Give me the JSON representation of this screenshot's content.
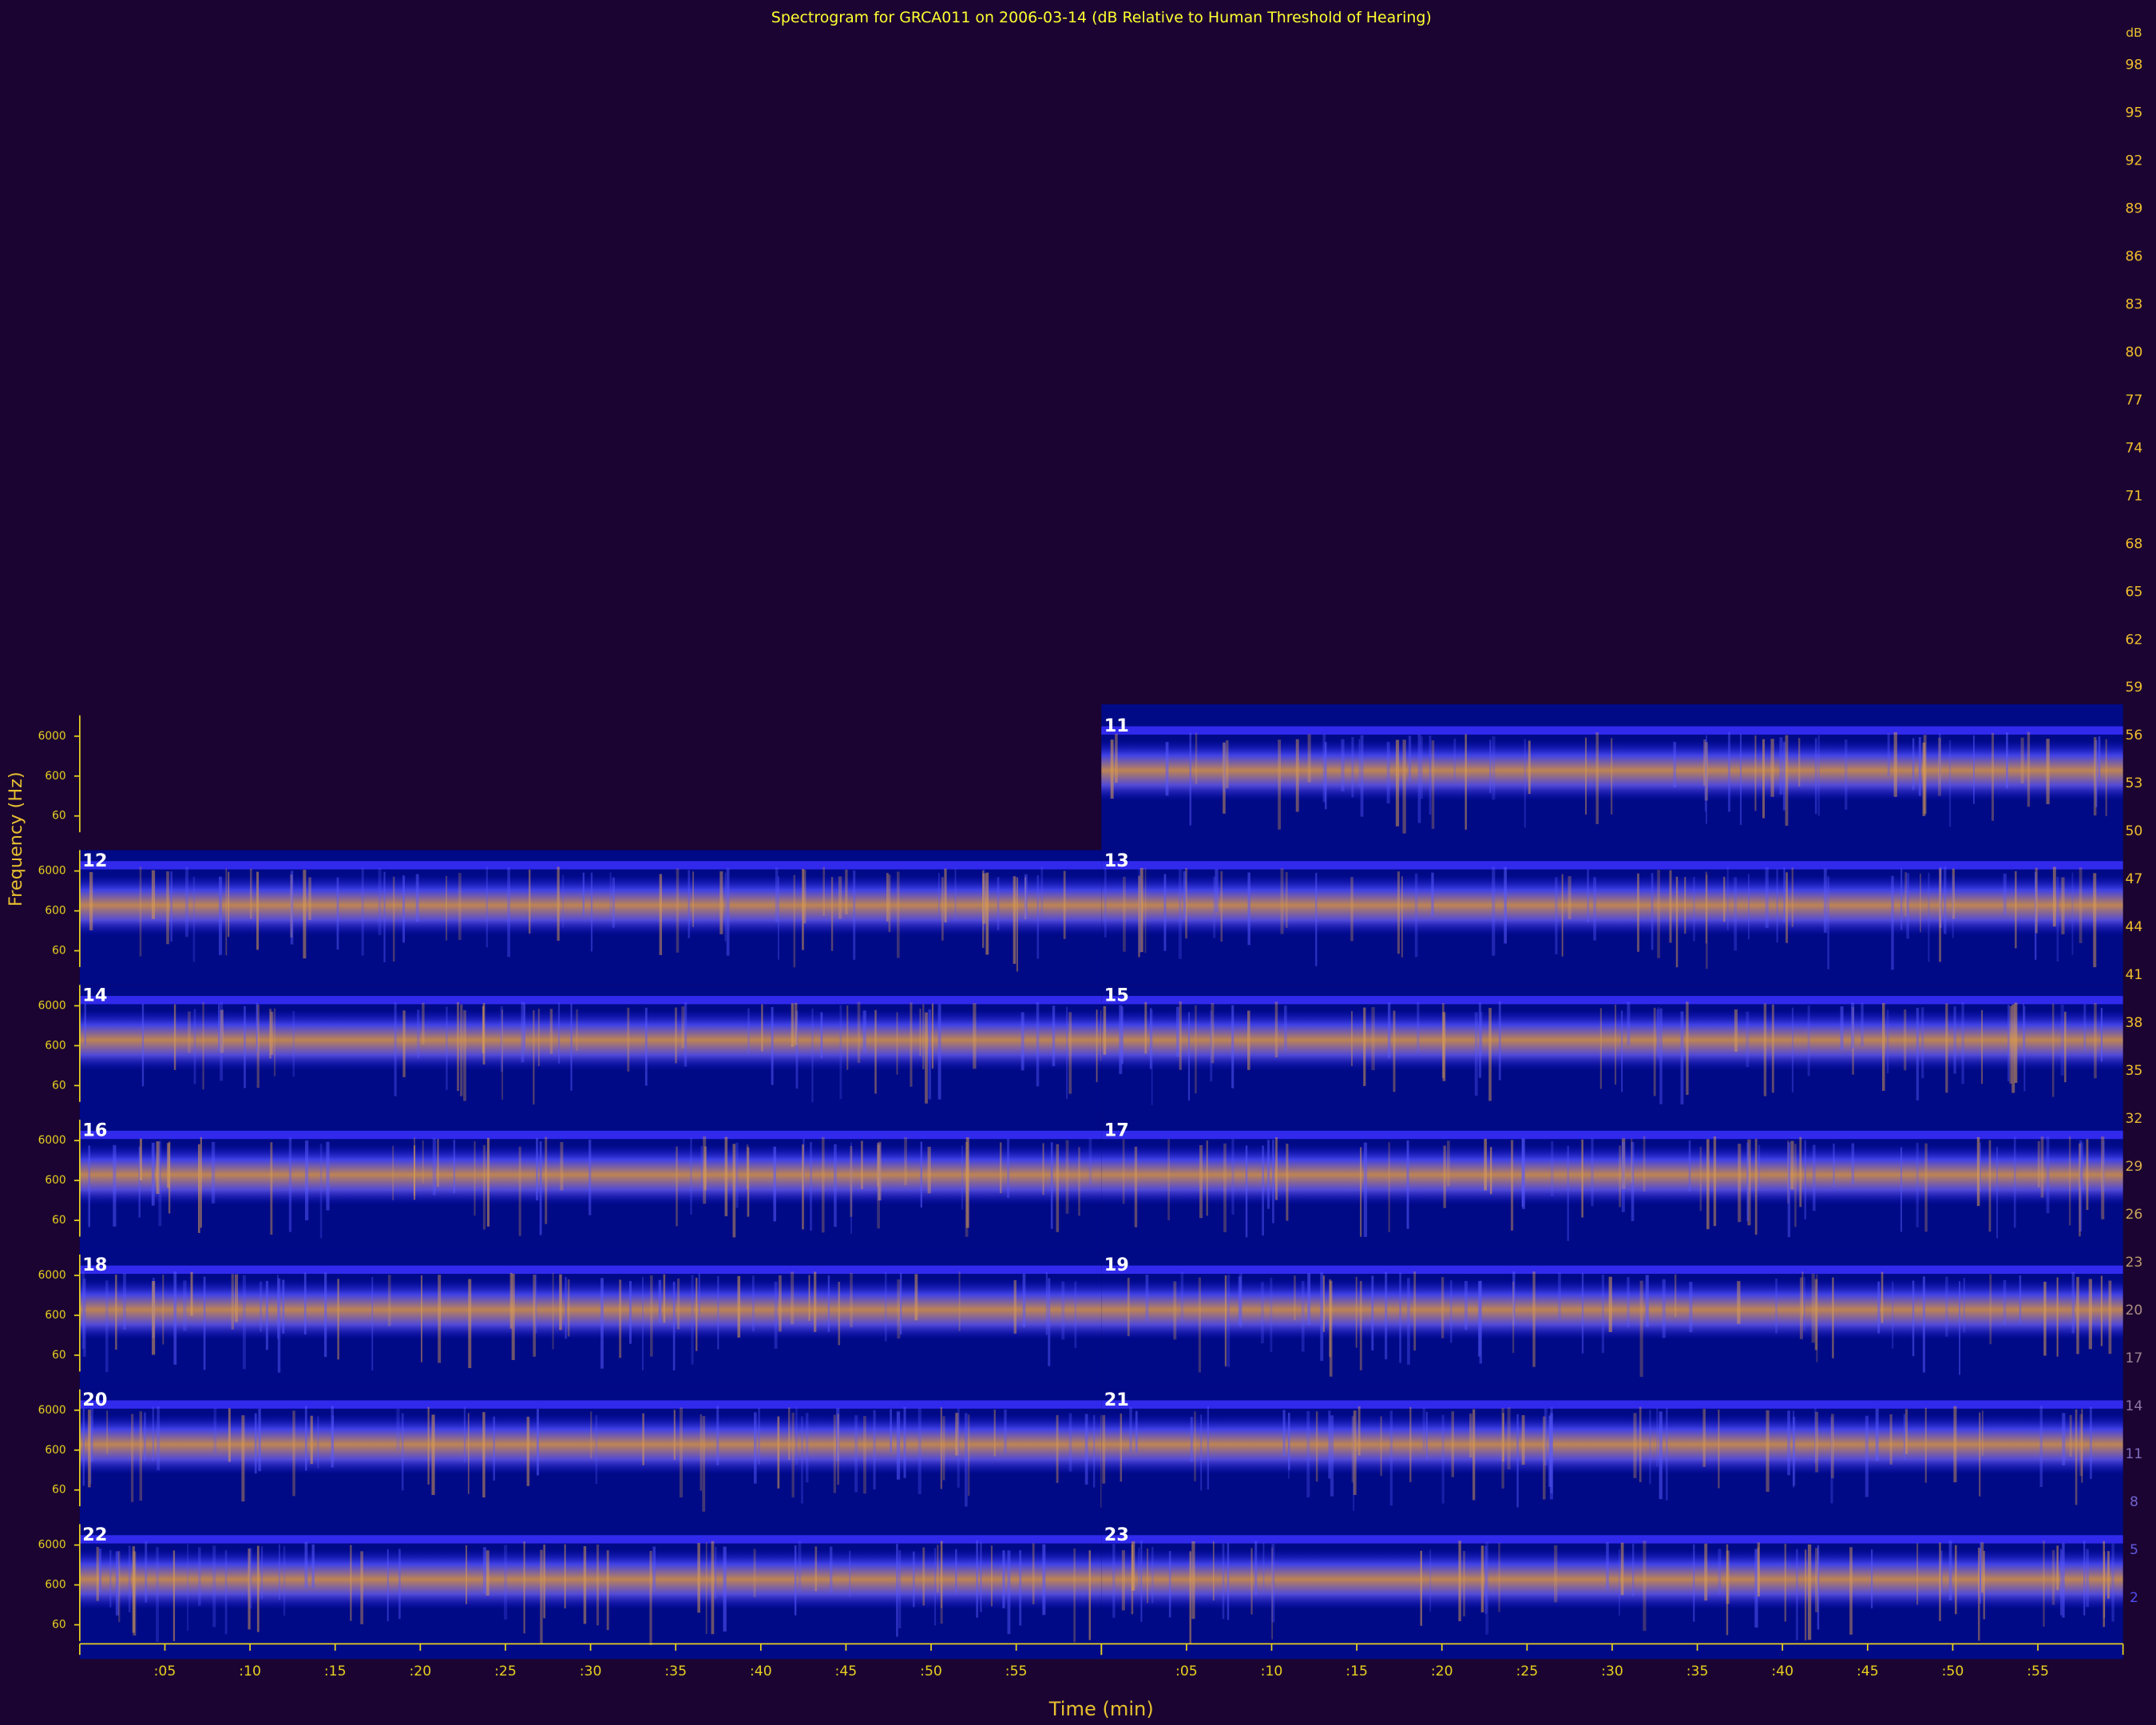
{
  "chart_data": {
    "type": "spectrogram",
    "title": "Spectrogram for GRCA011 on 2006-03-14 (dB Relative to Human Threshold of Hearing)",
    "x_label": "Time (min)",
    "y_label": "Frequency (Hz)",
    "xlim": [
      0,
      60
    ],
    "xticks": [
      {
        "value": 5,
        "label": ":05"
      },
      {
        "value": 10,
        "label": ":10"
      },
      {
        "value": 15,
        "label": ":15"
      },
      {
        "value": 20,
        "label": ":20"
      },
      {
        "value": 25,
        "label": ":25"
      },
      {
        "value": 30,
        "label": ":30"
      },
      {
        "value": 35,
        "label": ":35"
      },
      {
        "value": 40,
        "label": ":40"
      },
      {
        "value": 45,
        "label": ":45"
      },
      {
        "value": 50,
        "label": ":50"
      },
      {
        "value": 55,
        "label": ":55"
      }
    ],
    "ylim": [
      20,
      20000
    ],
    "log_y": true,
    "yticks": [
      60,
      600,
      6000
    ],
    "panels": [
      11,
      12,
      13,
      14,
      15,
      16,
      17,
      18,
      19,
      20,
      21,
      22,
      23
    ],
    "colorbar": {
      "label": "dB",
      "clim": [
        0,
        100
      ],
      "ticks": [
        98,
        95,
        92,
        89,
        86,
        83,
        80,
        77,
        74,
        71,
        68,
        65,
        62,
        59,
        56,
        53,
        50,
        47,
        44,
        41,
        38,
        35,
        32,
        29,
        26,
        23,
        20,
        17,
        14,
        11,
        8,
        5,
        2
      ]
    }
  }
}
